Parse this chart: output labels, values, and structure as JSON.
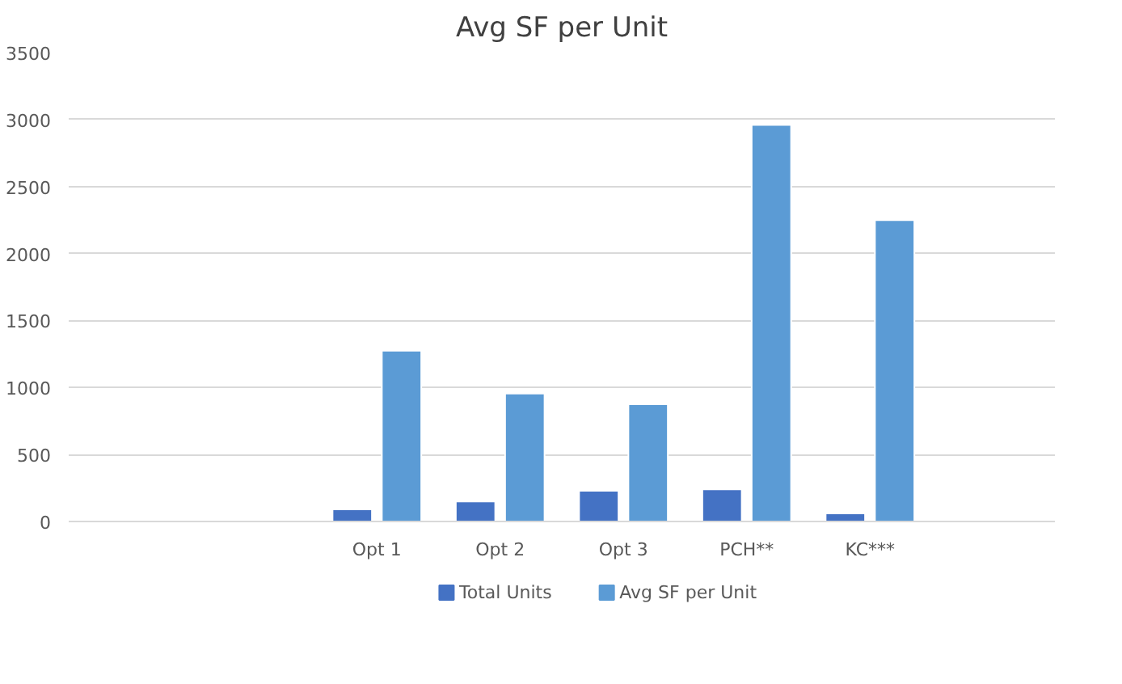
{
  "chart_data": {
    "type": "bar",
    "title": "Avg SF per Unit",
    "categories": [
      null,
      null,
      "Opt 1",
      "Opt 2",
      "Opt 3",
      "PCH**",
      "KC***",
      null
    ],
    "series": [
      {
        "name": "Total Units",
        "color": "#4472c4",
        "values": [
          null,
          null,
          90,
          150,
          230,
          240,
          60,
          null
        ]
      },
      {
        "name": "Avg SF per Unit",
        "color": "#5b9bd5",
        "values": [
          null,
          null,
          1275,
          955,
          875,
          2960,
          2250,
          null
        ]
      }
    ],
    "ylim": [
      0,
      3500
    ],
    "yticks": [
      0,
      500,
      1000,
      1500,
      2000,
      2500,
      3000,
      3500
    ],
    "grid": "y",
    "legend": "bottom"
  }
}
